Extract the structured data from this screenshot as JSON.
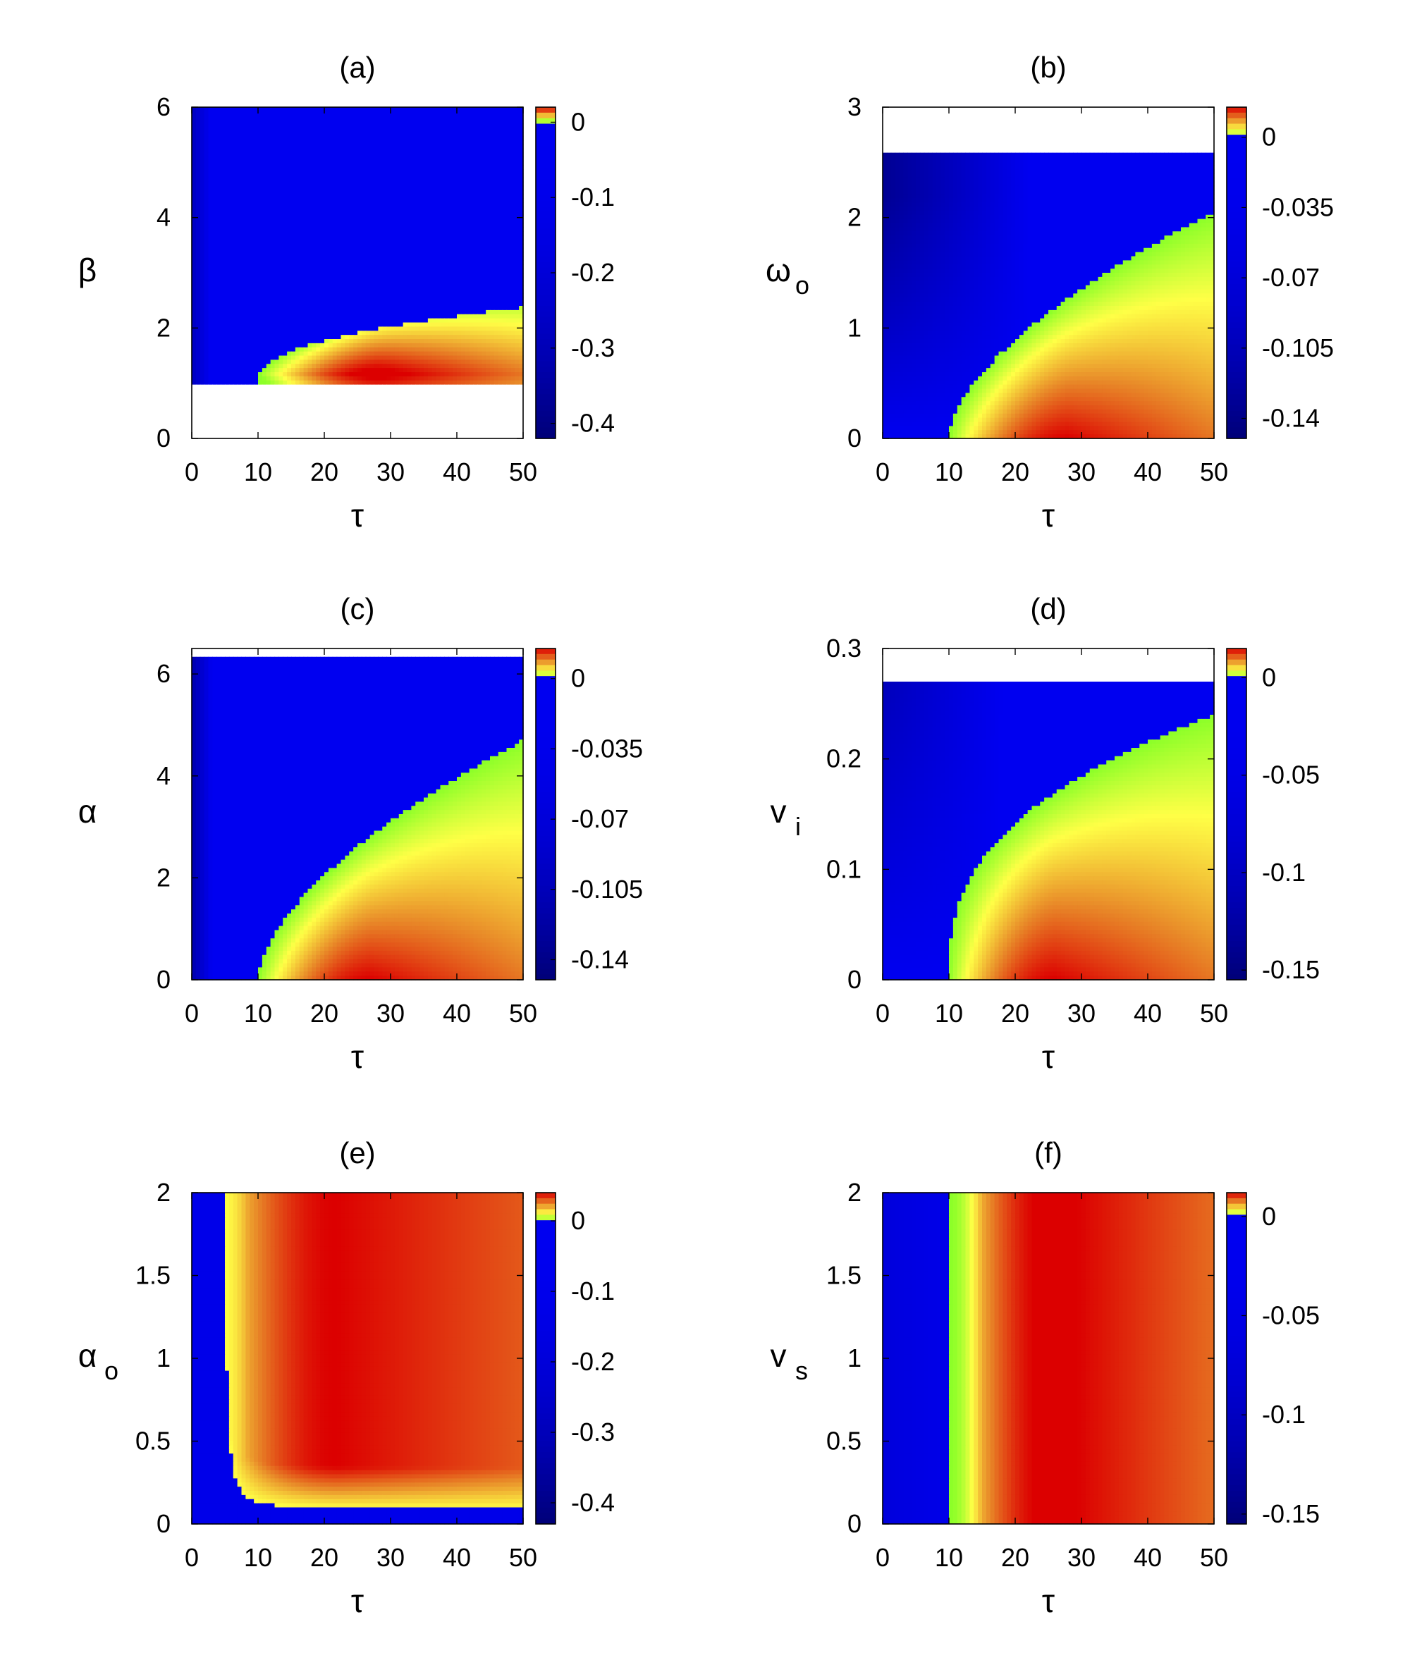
{
  "chart_data": [
    {
      "type": "heatmap",
      "title": "(a)",
      "xlabel": "τ",
      "ylabel": "β",
      "ylabel_sub": "",
      "xlim": [
        0,
        50
      ],
      "ylim": [
        0,
        6
      ],
      "xticks": [
        "0",
        "10",
        "20",
        "30",
        "40",
        "50"
      ],
      "yticks": [
        "0",
        "2",
        "4",
        "6"
      ],
      "colorbar": {
        "range": [
          -0.42,
          0.02
        ],
        "ticks": [
          "0",
          "-0.1",
          "-0.2",
          "-0.3",
          "-0.4"
        ],
        "tick_values": [
          0,
          -0.1,
          -0.2,
          -0.3,
          -0.4
        ]
      },
      "blank_region": "β < 1",
      "description_regions": [
        {
          "label": "unstable (negative)",
          "where": "β > 1 outside lobe"
        },
        {
          "label": "positive lobe",
          "tau_from": 10,
          "beta_range": [
            1,
            2.35
          ],
          "peak": {
            "tau": 30,
            "beta": 1.1
          }
        }
      ]
    },
    {
      "type": "heatmap",
      "title": "(b)",
      "xlabel": "τ",
      "ylabel": "ω",
      "ylabel_sub": "o",
      "xlim": [
        0,
        50
      ],
      "ylim": [
        0,
        3
      ],
      "xticks": [
        "0",
        "10",
        "20",
        "30",
        "40",
        "50"
      ],
      "yticks": [
        "0",
        "1",
        "2",
        "3"
      ],
      "colorbar": {
        "range": [
          -0.15,
          0.015
        ],
        "ticks": [
          "0",
          "-0.035",
          "-0.07",
          "-0.105",
          "-0.14"
        ],
        "tick_values": [
          0,
          -0.035,
          -0.07,
          -0.105,
          -0.14
        ]
      },
      "blank_region": "ω_o > 2.6",
      "boundary": {
        "tau_start": 10,
        "value_at_50": 2.05
      }
    },
    {
      "type": "heatmap",
      "title": "(c)",
      "xlabel": "τ",
      "ylabel": "α",
      "ylabel_sub": "",
      "xlim": [
        0,
        50
      ],
      "ylim": [
        0,
        6.5
      ],
      "xticks": [
        "0",
        "10",
        "20",
        "30",
        "40",
        "50"
      ],
      "yticks": [
        "0",
        "2",
        "4",
        "6"
      ],
      "colorbar": {
        "range": [
          -0.15,
          0.015
        ],
        "ticks": [
          "0",
          "-0.035",
          "-0.07",
          "-0.105",
          "-0.14"
        ],
        "tick_values": [
          0,
          -0.035,
          -0.07,
          -0.105,
          -0.14
        ]
      },
      "blank_region": "α > 6.3",
      "boundary": {
        "tau_start": 10,
        "value_at_50": 4.7
      }
    },
    {
      "type": "heatmap",
      "title": "(d)",
      "xlabel": "τ",
      "ylabel": "v",
      "ylabel_sub": "i",
      "xlim": [
        0,
        50
      ],
      "ylim": [
        0,
        0.3
      ],
      "xticks": [
        "0",
        "10",
        "20",
        "30",
        "40",
        "50"
      ],
      "yticks": [
        "0",
        "0.1",
        "0.2",
        "0.3"
      ],
      "colorbar": {
        "range": [
          -0.155,
          0.015
        ],
        "ticks": [
          "0",
          "-0.05",
          "-0.1",
          "-0.15"
        ],
        "tick_values": [
          0,
          -0.05,
          -0.1,
          -0.15
        ]
      },
      "blank_region": "v_i > 0.27",
      "boundary": {
        "tau_start": 10,
        "value_at_50": 0.24
      }
    },
    {
      "type": "heatmap",
      "title": "(e)",
      "xlabel": "τ",
      "ylabel": "α",
      "ylabel_sub": "o",
      "xlim": [
        0,
        50
      ],
      "ylim": [
        0,
        2
      ],
      "xticks": [
        "0",
        "10",
        "20",
        "30",
        "40",
        "50"
      ],
      "yticks": [
        "0",
        "0.5",
        "1",
        "1.5",
        "2"
      ],
      "colorbar": {
        "range": [
          -0.43,
          0.04
        ],
        "ticks": [
          "0",
          "-0.1",
          "-0.2",
          "-0.3",
          "-0.4"
        ],
        "tick_values": [
          0,
          -0.1,
          -0.2,
          -0.3,
          -0.4
        ]
      },
      "boundary": {
        "shape": "hyperbolic",
        "tau_asymptote": 4.5,
        "alpha_asymptote": 0.09
      }
    },
    {
      "type": "heatmap",
      "title": "(f)",
      "xlabel": "τ",
      "ylabel": "v",
      "ylabel_sub": "s",
      "xlim": [
        0,
        50
      ],
      "ylim": [
        0,
        2
      ],
      "xticks": [
        "0",
        "10",
        "20",
        "30",
        "40",
        "50"
      ],
      "yticks": [
        "0",
        "0.5",
        "1",
        "1.5",
        "2"
      ],
      "colorbar": {
        "range": [
          -0.155,
          0.012
        ],
        "ticks": [
          "0",
          "-0.05",
          "-0.1",
          "-0.15"
        ],
        "tick_values": [
          0,
          -0.05,
          -0.1,
          -0.15
        ]
      },
      "boundary": {
        "shape": "vertical",
        "tau": 10
      }
    }
  ],
  "colors": {
    "negative": "#0000f0",
    "negative_dark": "#00006a",
    "green": "#8cff28",
    "yellow": "#ffff46",
    "orange": "#e07820",
    "red": "#dc0000"
  }
}
